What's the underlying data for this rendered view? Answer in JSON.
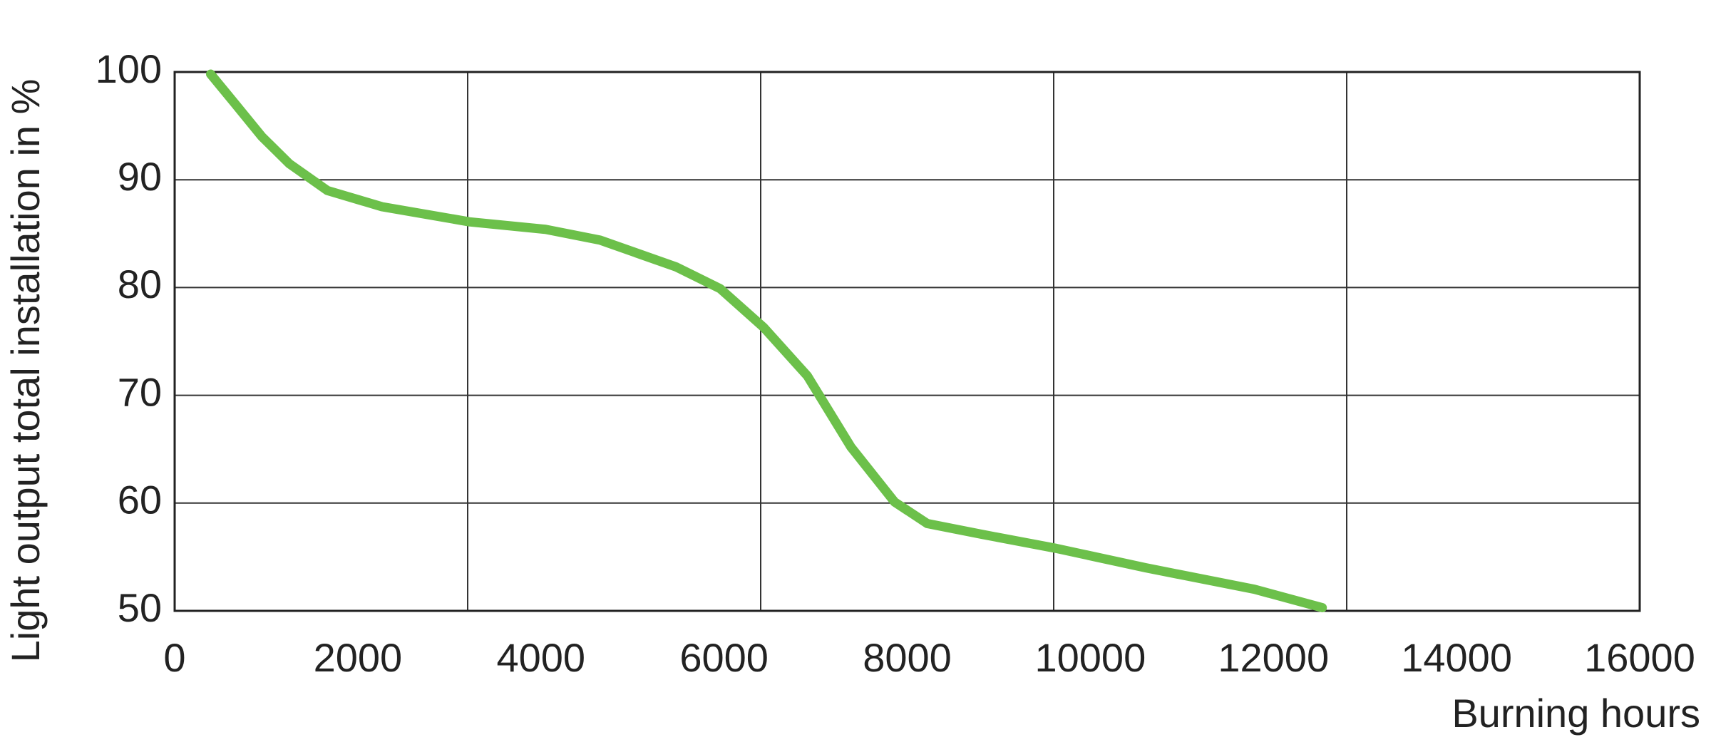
{
  "chart_data": {
    "type": "line",
    "x_label": "Burning hours",
    "y_label": "Light output total installation in %",
    "x": [
      393,
      655,
      953,
      1251,
      1668,
      2264,
      3217,
      4050,
      4646,
      5480,
      5957,
      6433,
      6910,
      7386,
      7863,
      8220,
      8816,
      9626,
      10603,
      11794,
      12533
    ],
    "series": [
      {
        "color": "#6cc04a",
        "values": [
          99.8,
          97.1,
          94.0,
          91.5,
          89.0,
          87.5,
          86.1,
          85.4,
          84.4,
          81.9,
          79.9,
          76.3,
          71.8,
          65.2,
          60.1,
          58.1,
          57.1,
          55.8,
          54.0,
          52.0,
          50.3
        ]
      }
    ],
    "xlim": [
      0,
      16000
    ],
    "xticks": [
      0,
      2000,
      4000,
      6000,
      8000,
      10000,
      12000,
      14000,
      16000
    ],
    "xgrid": [
      3200,
      6400,
      9600,
      12800
    ],
    "ylim": [
      50,
      100
    ],
    "yticks": [
      50,
      60,
      70,
      80,
      90,
      100
    ],
    "grid": true
  }
}
